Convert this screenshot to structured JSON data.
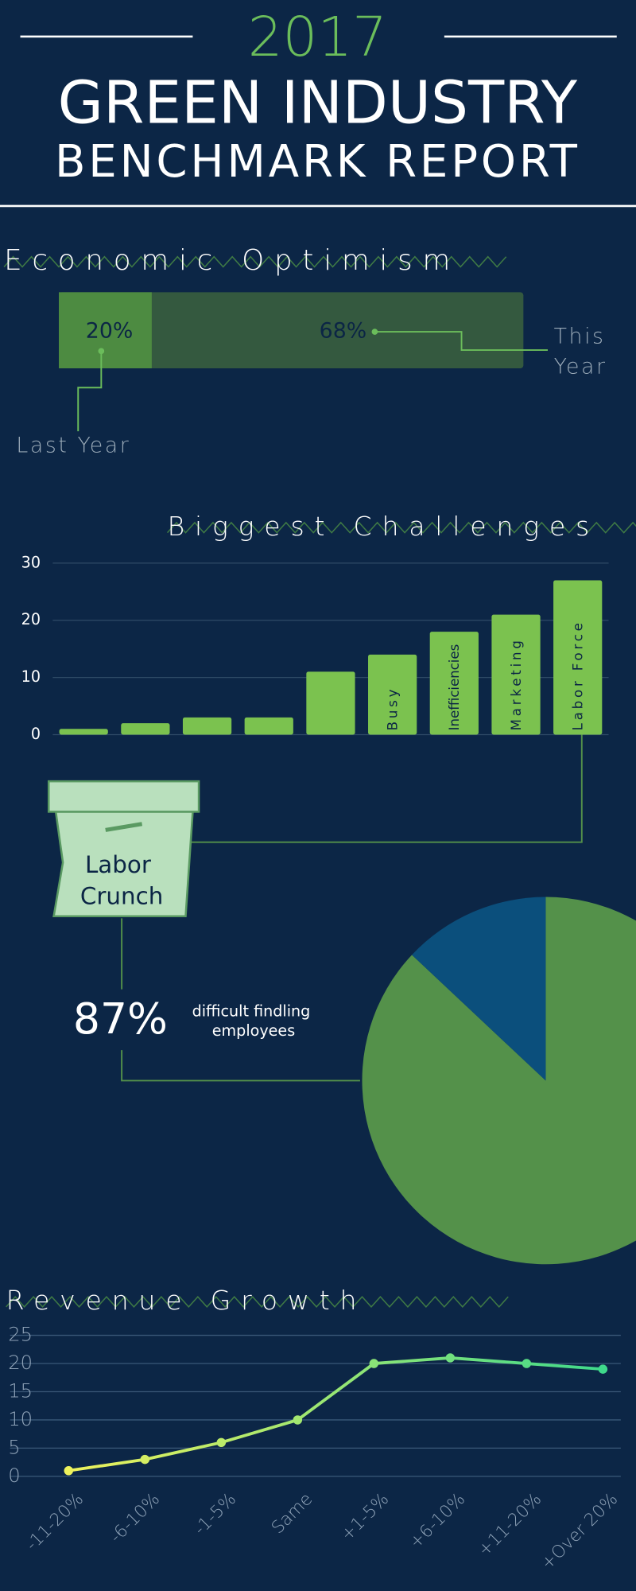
{
  "header": {
    "year": "2017",
    "title": "GREEN INDUSTRY",
    "subtitle": "BENCHMARK REPORT"
  },
  "chart_data": [
    {
      "type": "meter",
      "title": "Economic Optimism",
      "categories": [
        "Last Year",
        "This Year"
      ],
      "values": [
        20,
        68
      ],
      "value_labels": [
        "20%",
        "68%"
      ],
      "xlim": [
        0,
        100
      ],
      "color": "#4d8b41",
      "track_color": "#34593f"
    },
    {
      "type": "bar",
      "title": "Biggest Challenges",
      "categories": [
        null,
        null,
        null,
        null,
        null,
        "Busy",
        "Inefficiencies",
        "Marketing",
        "Labor Force"
      ],
      "values": [
        1,
        2,
        3,
        3,
        11,
        14,
        18,
        21,
        27
      ],
      "color": "#7bc24f",
      "ylim": [
        0,
        30
      ],
      "yticks": [
        0,
        10,
        20,
        30
      ],
      "grid": true
    },
    {
      "type": "pie",
      "label_box": "Labor Crunch",
      "annotation": "difficult findling employees",
      "values": [
        87,
        13
      ],
      "value_labels": [
        "87%",
        null
      ],
      "colors": [
        "#54914a",
        "#0b4f7c"
      ]
    },
    {
      "type": "line",
      "title": "Revenue Growth",
      "categories": [
        "-11-20%",
        "-6-10%",
        "-1-5%",
        "Same",
        "+1-5%",
        "+6-10%",
        "+11-20%",
        "+Over 20%"
      ],
      "values": [
        1,
        3,
        6,
        10,
        20,
        21,
        20,
        19
      ],
      "colors": [
        "#eef25c",
        "#3fd98b"
      ],
      "ylim": [
        0,
        25
      ],
      "yticks": [
        0,
        5,
        10,
        15,
        20,
        25
      ],
      "grid": true
    }
  ]
}
